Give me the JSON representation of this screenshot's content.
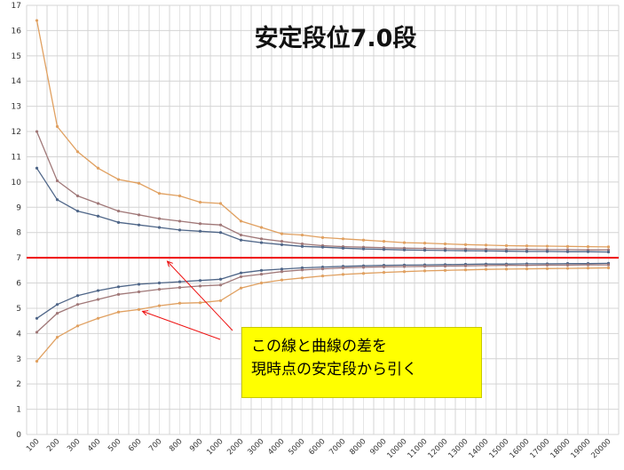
{
  "chart_data": {
    "type": "line",
    "title": "安定段位7.0段",
    "xlabel": "",
    "ylabel": "",
    "categories": [
      "100",
      "200",
      "300",
      "400",
      "500",
      "600",
      "700",
      "800",
      "900",
      "1000",
      "2000",
      "3000",
      "4000",
      "5000",
      "6000",
      "7000",
      "8000",
      "9000",
      "10000",
      "11000",
      "12000",
      "13000",
      "14000",
      "15000",
      "16000",
      "17000",
      "18000",
      "19000",
      "20000"
    ],
    "yticks": [
      0,
      1,
      2,
      3,
      4,
      5,
      6,
      7,
      8,
      9,
      10,
      11,
      12,
      13,
      14,
      15,
      16,
      17
    ],
    "ylim": [
      0,
      17
    ],
    "grid": true,
    "legend": "none",
    "reference_line": {
      "value": 7.0,
      "color": "#ee1111"
    },
    "series": [
      {
        "color": "#e0a060",
        "values": [
          16.4,
          12.2,
          11.2,
          10.55,
          10.1,
          9.95,
          9.55,
          9.45,
          9.2,
          9.15,
          8.45,
          8.2,
          7.95,
          7.9,
          7.8,
          7.75,
          7.7,
          7.65,
          7.6,
          7.58,
          7.55,
          7.52,
          7.5,
          7.48,
          7.47,
          7.46,
          7.45,
          7.44,
          7.43
        ]
      },
      {
        "color": "#a07878",
        "values": [
          12.0,
          10.05,
          9.45,
          9.15,
          8.85,
          8.7,
          8.55,
          8.45,
          8.35,
          8.3,
          7.9,
          7.75,
          7.65,
          7.55,
          7.48,
          7.44,
          7.42,
          7.4,
          7.38,
          7.37,
          7.36,
          7.35,
          7.34,
          7.33,
          7.33,
          7.32,
          7.32,
          7.31,
          7.31
        ]
      },
      {
        "color": "#4f6688",
        "values": [
          10.55,
          9.3,
          8.85,
          8.65,
          8.4,
          8.3,
          8.2,
          8.1,
          8.05,
          8.0,
          7.7,
          7.6,
          7.52,
          7.45,
          7.42,
          7.38,
          7.35,
          7.33,
          7.31,
          7.3,
          7.29,
          7.28,
          7.27,
          7.26,
          7.25,
          7.25,
          7.24,
          7.24,
          7.23
        ]
      },
      {
        "color": "#4f6688",
        "values": [
          4.6,
          5.15,
          5.5,
          5.7,
          5.85,
          5.95,
          6.0,
          6.05,
          6.1,
          6.15,
          6.4,
          6.5,
          6.55,
          6.6,
          6.63,
          6.66,
          6.68,
          6.7,
          6.71,
          6.72,
          6.73,
          6.74,
          6.75,
          6.75,
          6.76,
          6.76,
          6.77,
          6.77,
          6.78
        ]
      },
      {
        "color": "#a07878",
        "values": [
          4.05,
          4.8,
          5.15,
          5.35,
          5.55,
          5.65,
          5.75,
          5.82,
          5.88,
          5.92,
          6.25,
          6.35,
          6.45,
          6.52,
          6.56,
          6.6,
          6.62,
          6.64,
          6.65,
          6.66,
          6.67,
          6.68,
          6.69,
          6.7,
          6.7,
          6.71,
          6.71,
          6.72,
          6.72
        ]
      },
      {
        "color": "#e0a060",
        "values": [
          2.9,
          3.85,
          4.3,
          4.6,
          4.85,
          4.95,
          5.1,
          5.2,
          5.22,
          5.3,
          5.8,
          6.0,
          6.12,
          6.2,
          6.28,
          6.34,
          6.38,
          6.42,
          6.45,
          6.48,
          6.5,
          6.52,
          6.54,
          6.55,
          6.56,
          6.57,
          6.58,
          6.59,
          6.6
        ]
      }
    ],
    "annotation": {
      "lines": [
        "この線と曲線の差を",
        "現時点の安定段から引く"
      ]
    },
    "colors": {
      "grid": "#d4d4d4",
      "arrow": "#ee1111",
      "note_bg": "#ffff00"
    }
  }
}
